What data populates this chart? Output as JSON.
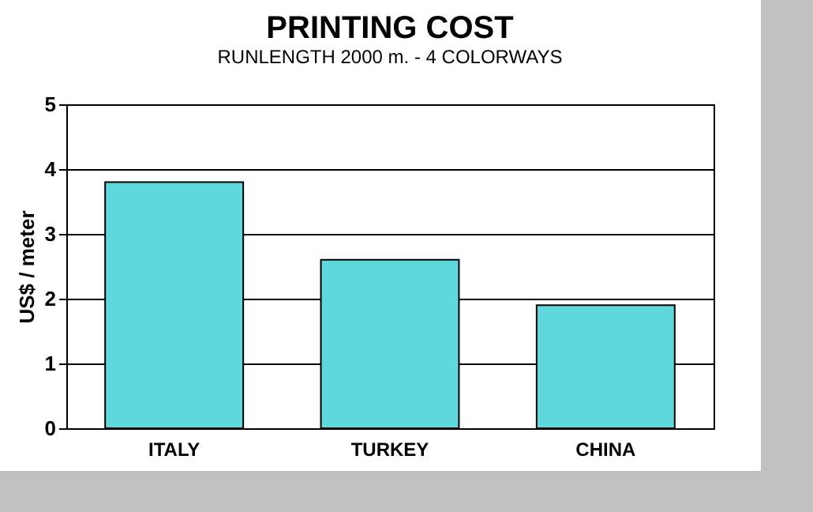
{
  "chart_data": {
    "type": "bar",
    "title": "PRINTING COST",
    "subtitle": "RUNLENGTH 2000 m. - 4 COLORWAYS",
    "ylabel": "US$ / meter",
    "categories": [
      "ITALY",
      "TURKEY",
      "CHINA"
    ],
    "values": [
      3.8,
      2.6,
      1.9
    ],
    "color": "#5fd8dc",
    "ylim": [
      0,
      5
    ],
    "yticks": [
      0,
      1,
      2,
      3,
      4,
      5
    ],
    "grid": "y"
  }
}
